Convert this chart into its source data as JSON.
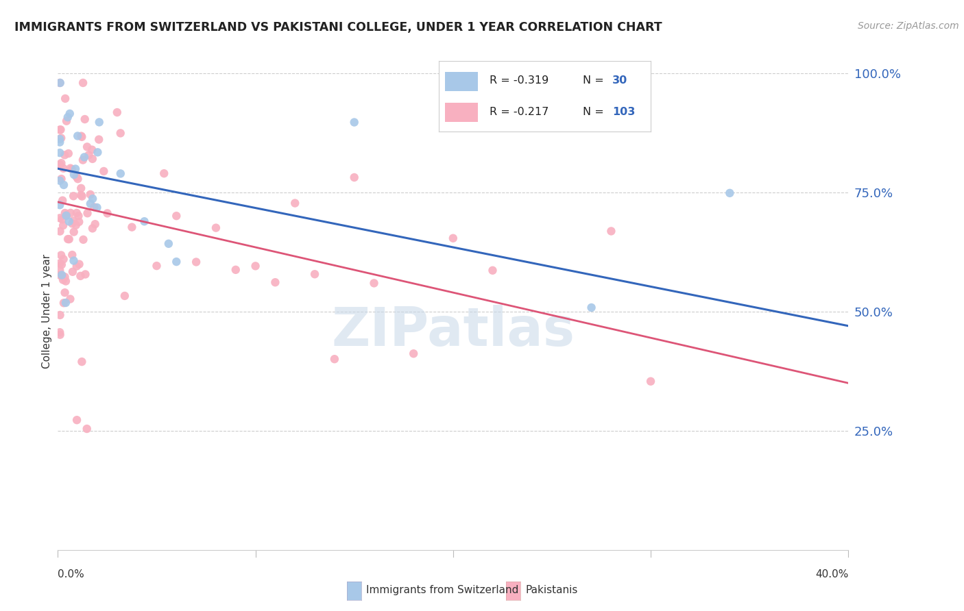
{
  "title": "IMMIGRANTS FROM SWITZERLAND VS PAKISTANI COLLEGE, UNDER 1 YEAR CORRELATION CHART",
  "source": "Source: ZipAtlas.com",
  "ylabel": "College, Under 1 year",
  "x_min": 0.0,
  "x_max": 0.4,
  "y_min": 0.0,
  "y_max": 1.0,
  "yticks": [
    0.25,
    0.5,
    0.75,
    1.0
  ],
  "ytick_labels": [
    "25.0%",
    "50.0%",
    "75.0%",
    "100.0%"
  ],
  "watermark": "ZIPatlas",
  "swiss_color": "#a8c8e8",
  "swiss_edge": "none",
  "pak_color": "#f8b0c0",
  "pak_edge": "none",
  "dot_size": 80,
  "swiss_line_color": "#3366bb",
  "pak_line_color": "#dd5577",
  "swiss_line_y0": 0.8,
  "swiss_line_y1": 0.47,
  "pak_line_y0": 0.73,
  "pak_line_y1": 0.35,
  "legend_box_color": "#a8c8e8",
  "legend_box_color2": "#f8b0c0",
  "legend_R1": "R = -0.319",
  "legend_N1": "N =  30",
  "legend_R2": "R = -0.217",
  "legend_N2": "N = 103",
  "legend_text_color": "#222222",
  "legend_num_color": "#3366bb"
}
